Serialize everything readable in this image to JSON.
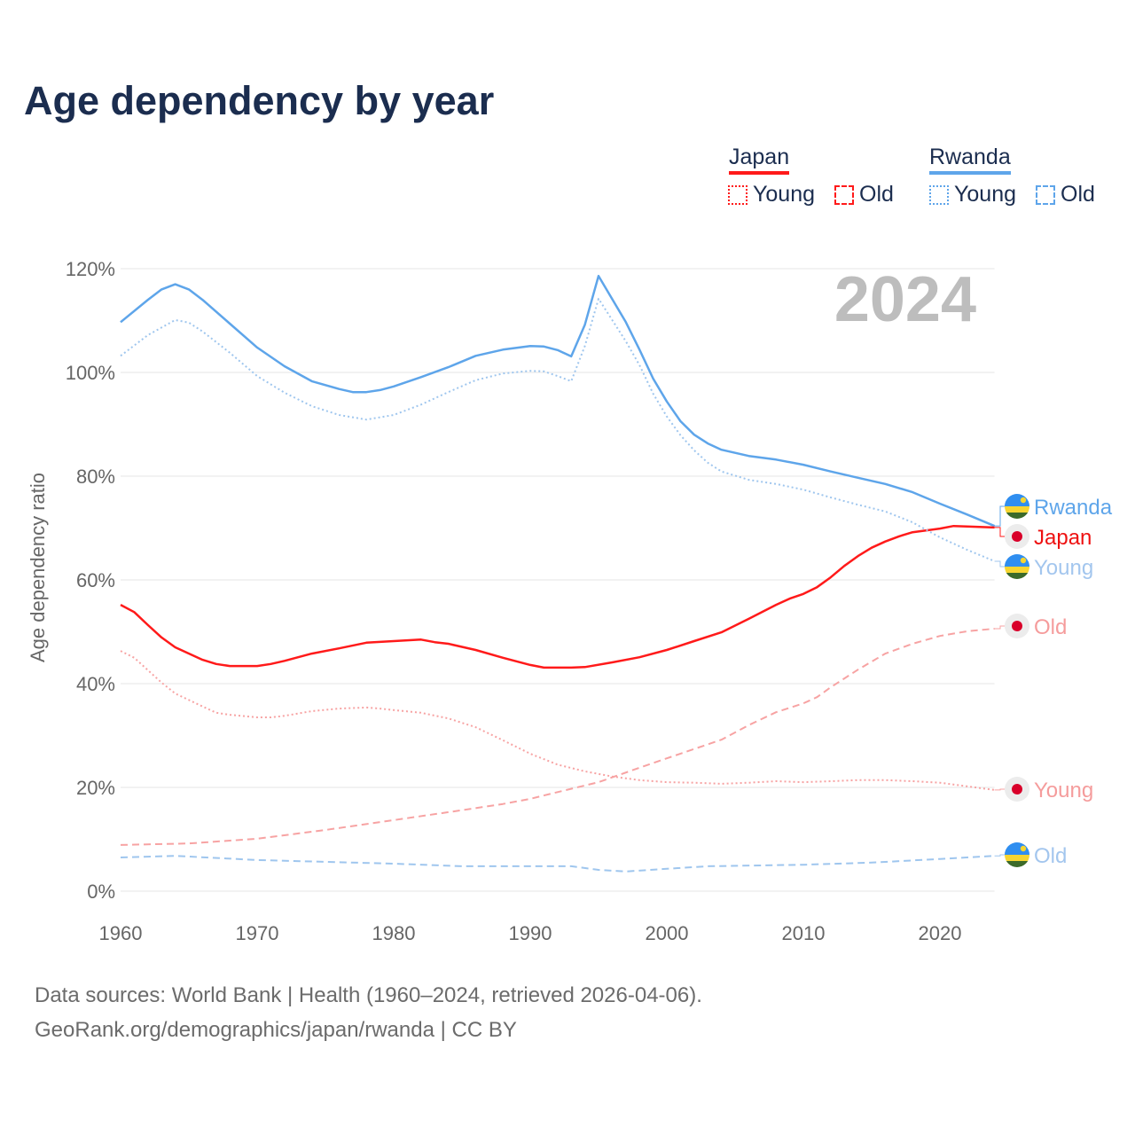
{
  "title": "Age dependency by year",
  "legend": {
    "groups": [
      {
        "country": "Japan",
        "color": "#ff1a1a",
        "items": [
          "Young",
          "Old"
        ]
      },
      {
        "country": "Rwanda",
        "color": "#5ea5ea",
        "items": [
          "Young",
          "Old"
        ]
      }
    ]
  },
  "footer": {
    "line1": "Data sources: World Bank | Health (1960–2024, retrieved 2026-04-06).",
    "line2": "GeoRank.org/demographics/japan/rwanda | CC BY"
  },
  "chart_data": {
    "type": "line",
    "title": "Age dependency by year",
    "ylabel": "Age dependency ratio",
    "xlabel": "",
    "xlim": [
      1960,
      2024
    ],
    "ylim": [
      0,
      120
    ],
    "x_ticks": [
      "1960",
      "1970",
      "1980",
      "1990",
      "2000",
      "2010",
      "2020"
    ],
    "y_ticks": [
      "0%",
      "20%",
      "40%",
      "60%",
      "80%",
      "100%",
      "120%"
    ],
    "year_watermark": "2024",
    "grid": true,
    "series": [
      {
        "name": "Rwanda",
        "label": "Rwanda",
        "style": "solid",
        "color": "#5ea5ea",
        "label_color": "#5ea5ea",
        "flag": "rwanda",
        "points": [
          [
            1960,
            109.7
          ],
          [
            1962,
            114
          ],
          [
            1963,
            116
          ],
          [
            1964,
            117
          ],
          [
            1965,
            116
          ],
          [
            1966,
            114
          ],
          [
            1968,
            109.4
          ],
          [
            1970,
            104.8
          ],
          [
            1972,
            101.2
          ],
          [
            1974,
            98.3
          ],
          [
            1976,
            96.8
          ],
          [
            1977,
            96.2
          ],
          [
            1978,
            96.2
          ],
          [
            1979,
            96.6
          ],
          [
            1980,
            97.3
          ],
          [
            1982,
            99.1
          ],
          [
            1984,
            101
          ],
          [
            1986,
            103.2
          ],
          [
            1988,
            104.4
          ],
          [
            1990,
            105.1
          ],
          [
            1991,
            105
          ],
          [
            1992,
            104.3
          ],
          [
            1993,
            103.1
          ],
          [
            1994,
            109.2
          ],
          [
            1995,
            118.6
          ],
          [
            1997,
            109.7
          ],
          [
            1998,
            104.4
          ],
          [
            1999,
            98.8
          ],
          [
            2000,
            94.4
          ],
          [
            2001,
            90.6
          ],
          [
            2002,
            88
          ],
          [
            2003,
            86.3
          ],
          [
            2004,
            85.1
          ],
          [
            2006,
            83.9
          ],
          [
            2008,
            83.2
          ],
          [
            2010,
            82.2
          ],
          [
            2012,
            80.9
          ],
          [
            2014,
            79.7
          ],
          [
            2016,
            78.5
          ],
          [
            2018,
            76.9
          ],
          [
            2020,
            74.7
          ],
          [
            2022,
            72.6
          ],
          [
            2024,
            70.4
          ]
        ]
      },
      {
        "name": "Japan",
        "label": "Japan",
        "style": "solid",
        "color": "#ff1a1a",
        "label_color": "#ee1111",
        "flag": "japan",
        "points": [
          [
            1960,
            55.2
          ],
          [
            1961,
            53.8
          ],
          [
            1962,
            51.3
          ],
          [
            1963,
            48.9
          ],
          [
            1964,
            47
          ],
          [
            1966,
            44.6
          ],
          [
            1967,
            43.8
          ],
          [
            1968,
            43.4
          ],
          [
            1970,
            43.4
          ],
          [
            1971,
            43.8
          ],
          [
            1972,
            44.4
          ],
          [
            1974,
            45.8
          ],
          [
            1976,
            46.8
          ],
          [
            1978,
            47.9
          ],
          [
            1980,
            48.2
          ],
          [
            1982,
            48.5
          ],
          [
            1983,
            48
          ],
          [
            1984,
            47.7
          ],
          [
            1986,
            46.5
          ],
          [
            1988,
            45
          ],
          [
            1990,
            43.6
          ],
          [
            1991,
            43.1
          ],
          [
            1993,
            43.1
          ],
          [
            1994,
            43.2
          ],
          [
            1996,
            44.1
          ],
          [
            1998,
            45.1
          ],
          [
            2000,
            46.5
          ],
          [
            2002,
            48.2
          ],
          [
            2004,
            49.9
          ],
          [
            2006,
            52.5
          ],
          [
            2008,
            55.2
          ],
          [
            2009,
            56.4
          ],
          [
            2010,
            57.3
          ],
          [
            2011,
            58.6
          ],
          [
            2012,
            60.5
          ],
          [
            2013,
            62.7
          ],
          [
            2014,
            64.6
          ],
          [
            2015,
            66.2
          ],
          [
            2016,
            67.4
          ],
          [
            2017,
            68.4
          ],
          [
            2018,
            69.2
          ],
          [
            2020,
            69.9
          ],
          [
            2021,
            70.4
          ],
          [
            2022,
            70.3
          ],
          [
            2024,
            70.1
          ]
        ]
      },
      {
        "name": "Rwanda Young",
        "label": "Young",
        "style": "dotted",
        "color": "#9fc6ee",
        "label_color": "#a3c6ee",
        "flag": "rwanda",
        "points": [
          [
            1960,
            103.2
          ],
          [
            1962,
            107.2
          ],
          [
            1964,
            110.1
          ],
          [
            1965,
            109.6
          ],
          [
            1966,
            107.9
          ],
          [
            1968,
            103.8
          ],
          [
            1970,
            99.3
          ],
          [
            1972,
            96.1
          ],
          [
            1974,
            93.5
          ],
          [
            1976,
            91.8
          ],
          [
            1978,
            90.9
          ],
          [
            1980,
            91.8
          ],
          [
            1982,
            93.8
          ],
          [
            1984,
            96.2
          ],
          [
            1986,
            98.5
          ],
          [
            1988,
            99.8
          ],
          [
            1990,
            100.3
          ],
          [
            1991,
            100.2
          ],
          [
            1992,
            99.3
          ],
          [
            1993,
            98.3
          ],
          [
            1994,
            105.1
          ],
          [
            1995,
            114.2
          ],
          [
            1997,
            106
          ],
          [
            1998,
            101.4
          ],
          [
            1999,
            95.9
          ],
          [
            2000,
            91.5
          ],
          [
            2001,
            87.9
          ],
          [
            2002,
            85
          ],
          [
            2003,
            82.6
          ],
          [
            2004,
            80.9
          ],
          [
            2006,
            79.3
          ],
          [
            2008,
            78.5
          ],
          [
            2010,
            77.4
          ],
          [
            2012,
            75.9
          ],
          [
            2014,
            74.5
          ],
          [
            2016,
            73.2
          ],
          [
            2018,
            71.1
          ],
          [
            2020,
            68.2
          ],
          [
            2022,
            65.8
          ],
          [
            2024,
            63.6
          ]
        ]
      },
      {
        "name": "Japan Old",
        "label": "Old",
        "style": "dashed",
        "color": "#f7a3a3",
        "label_color": "#f59c9c",
        "flag": "japan",
        "points": [
          [
            1960,
            8.9
          ],
          [
            1965,
            9.2
          ],
          [
            1970,
            10.1
          ],
          [
            1975,
            11.8
          ],
          [
            1980,
            13.7
          ],
          [
            1985,
            15.6
          ],
          [
            1988,
            16.8
          ],
          [
            1990,
            17.8
          ],
          [
            1992,
            19.1
          ],
          [
            1995,
            21
          ],
          [
            1998,
            23.8
          ],
          [
            2000,
            25.6
          ],
          [
            2002,
            27.4
          ],
          [
            2004,
            29.2
          ],
          [
            2006,
            32
          ],
          [
            2008,
            34.5
          ],
          [
            2010,
            36.2
          ],
          [
            2011,
            37.4
          ],
          [
            2012,
            39.3
          ],
          [
            2014,
            42.7
          ],
          [
            2016,
            45.8
          ],
          [
            2018,
            47.7
          ],
          [
            2020,
            49.2
          ],
          [
            2022,
            50.1
          ],
          [
            2024,
            50.6
          ]
        ]
      },
      {
        "name": "Japan Young",
        "label": "Young",
        "style": "dotted",
        "color": "#f7a3a3",
        "label_color": "#f59c9c",
        "flag": "japan",
        "points": [
          [
            1960,
            46.3
          ],
          [
            1961,
            45
          ],
          [
            1962,
            42.6
          ],
          [
            1963,
            40.2
          ],
          [
            1964,
            38.1
          ],
          [
            1966,
            35.6
          ],
          [
            1967,
            34.4
          ],
          [
            1968,
            34
          ],
          [
            1970,
            33.5
          ],
          [
            1971,
            33.5
          ],
          [
            1972,
            33.8
          ],
          [
            1974,
            34.7
          ],
          [
            1976,
            35.2
          ],
          [
            1978,
            35.4
          ],
          [
            1979,
            35.2
          ],
          [
            1980,
            34.9
          ],
          [
            1982,
            34.4
          ],
          [
            1984,
            33.3
          ],
          [
            1986,
            31.6
          ],
          [
            1988,
            29.1
          ],
          [
            1990,
            26.5
          ],
          [
            1992,
            24.4
          ],
          [
            1994,
            23.1
          ],
          [
            1996,
            22.1
          ],
          [
            1998,
            21.4
          ],
          [
            2000,
            21
          ],
          [
            2002,
            20.9
          ],
          [
            2004,
            20.7
          ],
          [
            2006,
            20.9
          ],
          [
            2008,
            21.2
          ],
          [
            2010,
            21
          ],
          [
            2012,
            21.2
          ],
          [
            2014,
            21.4
          ],
          [
            2016,
            21.4
          ],
          [
            2018,
            21.2
          ],
          [
            2020,
            20.9
          ],
          [
            2022,
            20.2
          ],
          [
            2024,
            19.5
          ]
        ]
      },
      {
        "name": "Rwanda Old",
        "label": "Old",
        "style": "dashed",
        "color": "#9fc6ee",
        "label_color": "#a3c6ee",
        "flag": "rwanda",
        "points": [
          [
            1960,
            6.5
          ],
          [
            1964,
            6.8
          ],
          [
            1970,
            6
          ],
          [
            1980,
            5.3
          ],
          [
            1985,
            4.8
          ],
          [
            1990,
            4.8
          ],
          [
            1993,
            4.8
          ],
          [
            1995,
            4.1
          ],
          [
            1997,
            3.8
          ],
          [
            2000,
            4.3
          ],
          [
            2003,
            4.8
          ],
          [
            2010,
            5.1
          ],
          [
            2015,
            5.5
          ],
          [
            2020,
            6.2
          ],
          [
            2024,
            6.8
          ]
        ]
      }
    ]
  }
}
